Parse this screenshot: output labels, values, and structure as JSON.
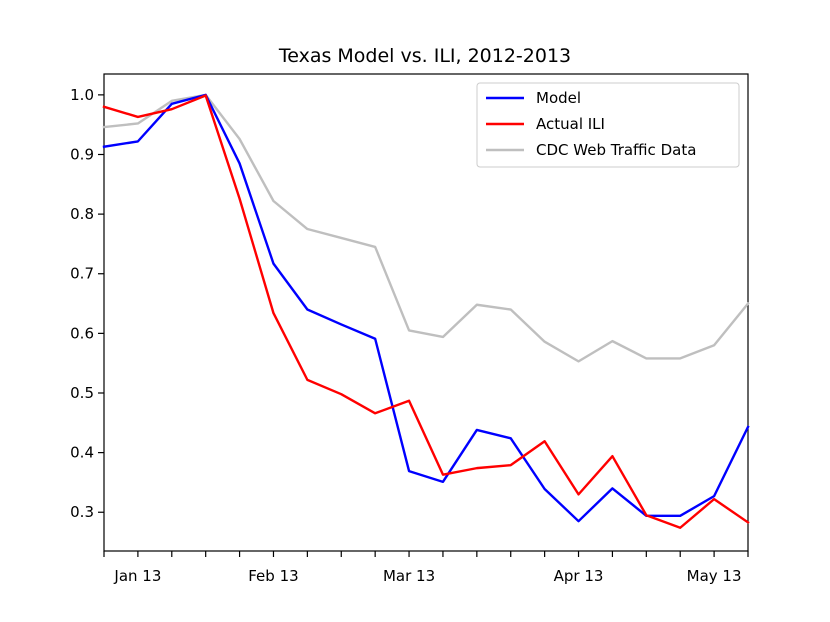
{
  "chart_data": {
    "type": "line",
    "title": "Texas Model vs. ILI, 2012-2013",
    "xlabel": "",
    "ylabel": "",
    "x": [
      0,
      1,
      2,
      3,
      4,
      5,
      6,
      7,
      8,
      9,
      10,
      11,
      12,
      13,
      14,
      15,
      16,
      17,
      18,
      19
    ],
    "x_tick_positions": [
      0,
      1,
      2,
      3,
      4,
      5,
      6,
      7,
      8,
      9,
      10,
      11,
      12,
      13,
      14,
      15,
      16,
      17,
      18,
      19
    ],
    "x_tick_labels": [
      {
        "pos": 1,
        "label": "Jan 13"
      },
      {
        "pos": 5,
        "label": "Feb 13"
      },
      {
        "pos": 9,
        "label": "Mar 13"
      },
      {
        "pos": 14,
        "label": "Apr 13"
      },
      {
        "pos": 18,
        "label": "May 13"
      }
    ],
    "xlim": [
      0,
      19
    ],
    "ylim": [
      0.235,
      1.035
    ],
    "y_ticks": [
      0.3,
      0.4,
      0.5,
      0.6,
      0.7,
      0.8,
      0.9,
      1.0
    ],
    "y_tick_labels": [
      "0.3",
      "0.4",
      "0.5",
      "0.6",
      "0.7",
      "0.8",
      "0.9",
      "1.0"
    ],
    "legend_position": "top-right",
    "series": [
      {
        "name": "Model",
        "color": "#0000ff",
        "values": [
          0.913,
          0.922,
          0.985,
          1.0,
          0.885,
          0.717,
          0.64,
          0.615,
          0.591,
          0.369,
          0.351,
          0.438,
          0.424,
          0.339,
          0.285,
          0.34,
          0.294,
          0.294,
          0.327,
          0.443
        ]
      },
      {
        "name": "Actual ILI",
        "color": "#ff0000",
        "values": [
          0.98,
          0.963,
          0.976,
          0.999,
          0.826,
          0.634,
          0.522,
          0.498,
          0.466,
          0.487,
          0.363,
          0.374,
          0.379,
          0.419,
          0.33,
          0.394,
          0.295,
          0.274,
          0.322,
          0.283
        ]
      },
      {
        "name": "CDC Web Traffic Data",
        "color": "#bfbfbf",
        "values": [
          0.946,
          0.952,
          0.99,
          1.0,
          0.926,
          0.822,
          0.775,
          0.76,
          0.745,
          0.605,
          0.594,
          0.648,
          0.64,
          0.586,
          0.553,
          0.587,
          0.558,
          0.558,
          0.58,
          0.65
        ]
      }
    ]
  }
}
